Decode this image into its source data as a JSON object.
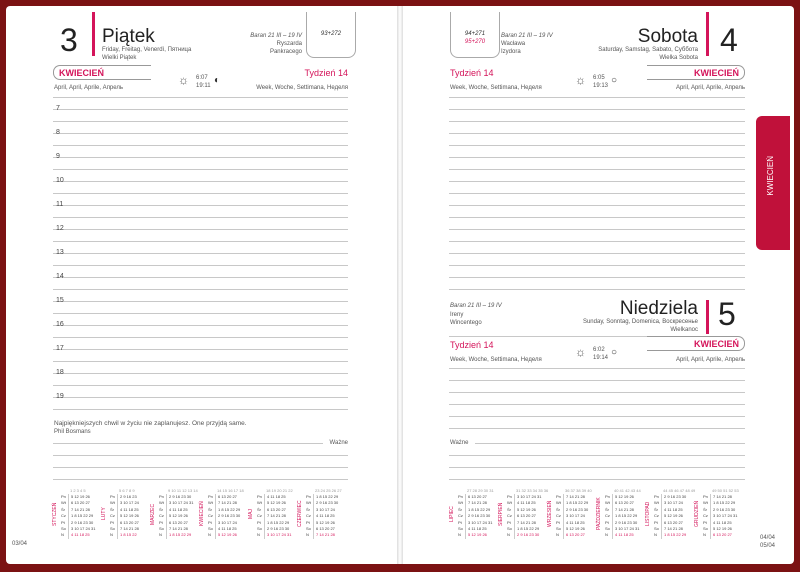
{
  "left": {
    "day_number": "3",
    "day_name": "Piątek",
    "day_translations": "Friday, Freitag, Venerdì, Пятница",
    "holiday": "Wielki Piątek",
    "zodiac": "Baran 21 III – 19 IV",
    "namedays": [
      "Ryszarda",
      "Pankracego"
    ],
    "day_of_year": "93+272",
    "month": "KWIECIEŃ",
    "month_translations": "April, April, Aprile, Апрель",
    "week": "Tydzień 14",
    "week_translations": "Week, Woche, Settimana, Неделя",
    "sunrise": "6:07",
    "sunset": "19:11",
    "hours": [
      "7",
      "8",
      "9",
      "10",
      "11",
      "12",
      "13",
      "14",
      "15",
      "16",
      "17",
      "18",
      "19"
    ],
    "quote": "Najpiękniejszych chwil w życiu nie zaplanujesz. One przyjdą same.",
    "quote_author": "Phil Bosmans",
    "important": "Ważne",
    "page_number": "03/04"
  },
  "right": {
    "saturday": {
      "day_number": "4",
      "day_name": "Sobota",
      "day_translations": "Saturday, Samstag, Sabato, Суббота",
      "holiday": "Wielka Sobota",
      "zodiac": "Baran 21 III – 19 IV",
      "namedays": [
        "Wacława",
        "Izydora"
      ],
      "day_of_year": "94+271",
      "day_of_year_2": "95+270",
      "week": "Tydzień 14",
      "week_translations": "Week, Woche, Settimana, Неделя",
      "sunrise": "6:05",
      "sunset": "19:13",
      "month": "KWIECIEŃ",
      "month_translations": "April, April, Aprile, Апрель"
    },
    "sunday": {
      "day_number": "5",
      "day_name": "Niedziela",
      "day_translations": "Sunday, Sonntag, Domenica, Воскресенье",
      "holiday": "Wielkanoc",
      "zodiac": "Baran 21 III – 19 IV",
      "namedays": [
        "Ireny",
        "Wincentego"
      ],
      "week": "Tydzień 14",
      "week_translations": "Week, Woche, Settimana, Неделя",
      "sunrise": "6:02",
      "sunset": "19:14",
      "month": "KWIECIEŃ",
      "month_translations": "April, April, Aprile, Апрель"
    },
    "important": "Ważne",
    "page_number_1": "04/04",
    "page_number_2": "05/04",
    "tab_label": "KWIECIEŃ"
  },
  "weekday_labels": [
    "Pn",
    "Wt",
    "Śr",
    "Cz",
    "Pt",
    "So",
    "N"
  ],
  "colors": {
    "accent": "#d4145a",
    "frame": "#7b1213",
    "tab": "#c0113a"
  },
  "calendars": [
    {
      "name": "STYCZEŃ",
      "weeks": "1 2 3 4 5",
      "rows": [
        "5 12 19 26",
        "6 13 20 27",
        "7 14 21 28",
        "1 8 15 22 29",
        "2 9 16 23 30",
        "3 10 17 24 31",
        "4 11 18 25"
      ]
    },
    {
      "name": "LUTY",
      "weeks": "5 6 7 8 9",
      "rows": [
        "2 9 16 23",
        "3 10 17 24",
        "4 11 18 25",
        "5 12 19 26",
        "6 13 20 27",
        "7 14 21 28",
        "1 8 15 22"
      ]
    },
    {
      "name": "MARZEC",
      "weeks": "9 10 11 12 13 14",
      "rows": [
        "2 9 16 23 30",
        "3 10 17 24 31",
        "4 11 18 25",
        "5 12 19 26",
        "6 13 20 27",
        "7 14 21 28",
        "1 8 15 22 29"
      ]
    },
    {
      "name": "KWIECIEŃ",
      "weeks": "14 15 16 17 18",
      "rows": [
        "6 13 20 27",
        "7 14 21 28",
        "1 8 15 22 29",
        "2 9 16 23 30",
        "3 10 17 24",
        "4 11 18 25",
        "5 12 19 26"
      ]
    },
    {
      "name": "MAJ",
      "weeks": "18 19 20 21 22",
      "rows": [
        "4 11 18 25",
        "5 12 19 26",
        "6 13 20 27",
        "7 14 21 28",
        "1 8 15 22 29",
        "2 9 16 23 30",
        "3 10 17 24 31"
      ]
    },
    {
      "name": "CZERWIEC",
      "weeks": "23 24 25 26 27",
      "rows": [
        "1 8 15 22 29",
        "2 9 16 23 30",
        "3 10 17 24",
        "4 11 18 25",
        "5 12 19 26",
        "6 13 20 27",
        "7 14 21 28"
      ]
    },
    {
      "name": "LIPIEC",
      "weeks": "27 28 29 30 31",
      "rows": [
        "6 13 20 27",
        "7 14 21 28",
        "1 8 15 22 29",
        "2 9 16 23 30",
        "3 10 17 24 31",
        "4 11 18 25",
        "5 12 19 26"
      ]
    },
    {
      "name": "SIERPIEŃ",
      "weeks": "31 32 33 34 35 36",
      "rows": [
        "3 10 17 24 31",
        "4 11 18 25",
        "5 12 19 26",
        "6 13 20 27",
        "7 14 21 28",
        "1 8 15 22 29",
        "2 9 16 23 30"
      ]
    },
    {
      "name": "WRZESIEŃ",
      "weeks": "36 37 38 39 40",
      "rows": [
        "7 14 21 28",
        "1 8 15 22 29",
        "2 9 16 23 30",
        "3 10 17 24",
        "4 11 18 25",
        "5 12 19 26",
        "6 13 20 27"
      ]
    },
    {
      "name": "PAŹDZIERNIK",
      "weeks": "40 41 42 43 44",
      "rows": [
        "5 12 19 26",
        "6 13 20 27",
        "7 14 21 28",
        "1 8 15 22 29",
        "2 9 16 23 30",
        "3 10 17 24 31",
        "4 11 18 25"
      ]
    },
    {
      "name": "LISTOPAD",
      "weeks": "44 45 46 47 48 49",
      "rows": [
        "2 9 16 23 30",
        "3 10 17 24",
        "4 11 18 25",
        "5 12 19 26",
        "6 13 20 27",
        "7 14 21 28",
        "1 8 15 22 29"
      ]
    },
    {
      "name": "GRUDZIEŃ",
      "weeks": "49 50 51 52 53",
      "rows": [
        "7 14 21 28",
        "1 8 15 22 29",
        "2 9 16 23 30",
        "3 10 17 24 31",
        "4 11 18 25",
        "5 12 19 26",
        "6 13 20 27"
      ]
    }
  ]
}
